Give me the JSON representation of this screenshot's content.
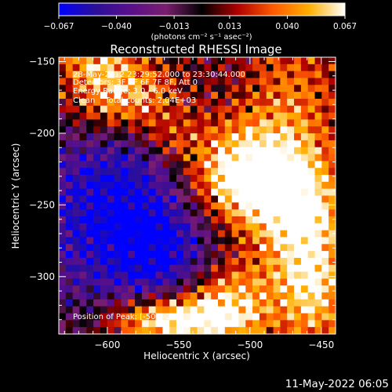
{
  "chart_data": {
    "type": "heatmap",
    "title": "Reconstructed RHESSI Image",
    "xlabel": "Heliocentric X (arcsec)",
    "ylabel": "Heliocentric Y (arcsec)",
    "xlim": [
      -634,
      -440
    ],
    "ylim": [
      -340,
      -147
    ],
    "x_ticks": [
      -600,
      -550,
      -500,
      -450
    ],
    "x_tick_labels": [
      "−600",
      "−550",
      "−500",
      "−450"
    ],
    "y_ticks": [
      -150,
      -200,
      -250,
      -300
    ],
    "y_tick_labels": [
      "−150",
      "−200",
      "−250",
      "−300"
    ],
    "colorbar": {
      "min": -0.067,
      "max": 0.067,
      "ticks": [
        -0.067,
        -0.04,
        -0.013,
        0.013,
        0.04,
        0.067
      ],
      "tick_labels": [
        "−0.067",
        "−0.040",
        "−0.013",
        "0.013",
        "0.040",
        "0.067"
      ],
      "units_label": "(photons cm⁻² s⁻¹ asec⁻²)",
      "colormap": [
        "#0000ff",
        "#2a0f9a",
        "#5a0f8a",
        "#7a1e6e",
        "#000000",
        "#b00000",
        "#ff5a00",
        "#ffb000",
        "#ffffff"
      ]
    },
    "annotations": [
      "28-May-2012 23:29:52.000 to 23:30:44.000",
      "Detectors: 3F 5F 6F 7F 8F, Att 0",
      "Energy Range: 3.0 - 6.0 keV",
      "Clean    Total counts: 2.04E+03"
    ],
    "position_of_peak": "Position of Peak: [-504,-230]",
    "peak": [
      -504,
      -230
    ],
    "sources": [
      {
        "x": -504,
        "y": -230,
        "sx": 30,
        "sy": 26,
        "amp": 0.095
      },
      {
        "x": -590,
        "y": -175,
        "sx": 28,
        "sy": 20,
        "amp": 0.075
      },
      {
        "x": -463,
        "y": -262,
        "sx": 20,
        "sy": 32,
        "amp": 0.065
      },
      {
        "x": -555,
        "y": -205,
        "sx": 16,
        "sy": 14,
        "amp": 0.03
      },
      {
        "x": -470,
        "y": -170,
        "sx": 24,
        "sy": 30,
        "amp": 0.03
      },
      {
        "x": -515,
        "y": -318,
        "sx": 24,
        "sy": 22,
        "amp": 0.06
      },
      {
        "x": -560,
        "y": -330,
        "sx": 30,
        "sy": 12,
        "amp": 0.085
      },
      {
        "x": -455,
        "y": -315,
        "sx": 16,
        "sy": 24,
        "amp": 0.045
      },
      {
        "x": -610,
        "y": -150,
        "sx": 18,
        "sy": 10,
        "amp": 0.035
      },
      {
        "x": -590,
        "y": -255,
        "sx": 45,
        "sy": 55,
        "amp": -0.075
      },
      {
        "x": -555,
        "y": -285,
        "sx": 22,
        "sy": 22,
        "amp": -0.03
      }
    ]
  },
  "footer_timestamp": "11-May-2022 06:05"
}
